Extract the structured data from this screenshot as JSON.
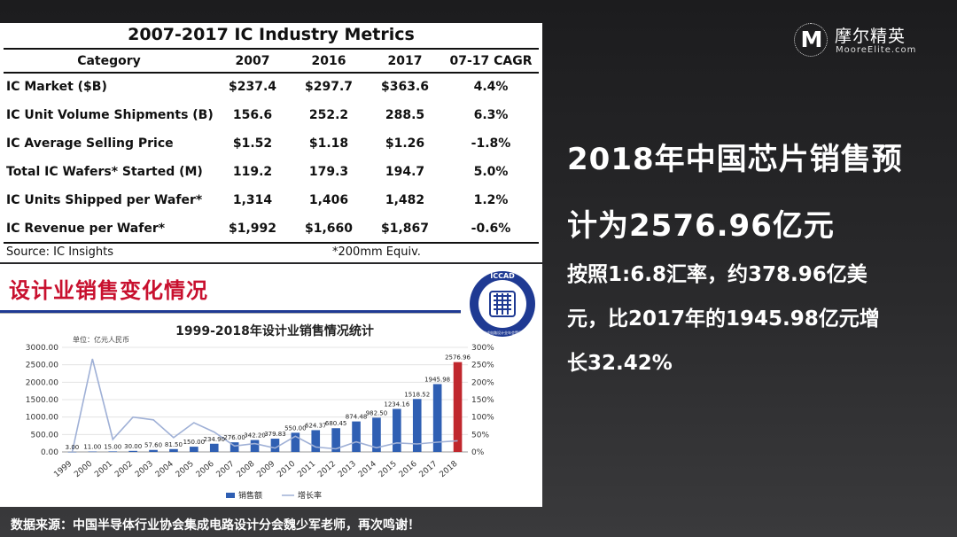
{
  "table": {
    "title": "2007-2017 IC Industry Metrics",
    "headers": [
      "Category",
      "2007",
      "2016",
      "2017",
      "07-17 CAGR"
    ],
    "rows": [
      [
        "IC Market ($B)",
        "$237.4",
        "$297.7",
        "$363.6",
        "4.4%"
      ],
      [
        "IC Unit Volume Shipments (B)",
        "156.6",
        "252.2",
        "288.5",
        "6.3%"
      ],
      [
        "IC Average Selling Price",
        "$1.52",
        "$1.18",
        "$1.26",
        "-1.8%"
      ],
      [
        "Total IC Wafers* Started (M)",
        "119.2",
        "179.3",
        "194.7",
        "5.0%"
      ],
      [
        "IC Units Shipped per Wafer*",
        "1,314",
        "1,406",
        "1,482",
        "1.2%"
      ],
      [
        "IC Revenue per Wafer*",
        "$1,992",
        "$1,660",
        "$1,867",
        "-0.6%"
      ]
    ],
    "source": "Source: IC Insights",
    "note": "*200mm Equiv."
  },
  "section": {
    "title": "设计业销售变化情况",
    "logo_text": "ICCAD",
    "logo_subtext": "中国集成电路设计业年会暨展览会"
  },
  "chart_data": {
    "type": "bar",
    "title": "1999-2018年设计业销售情况统计",
    "unit_label": "单位：亿元人民币",
    "categories": [
      "1999",
      "2000",
      "2001",
      "2002",
      "2003",
      "2004",
      "2005",
      "2006",
      "2007",
      "2008",
      "2009",
      "2010",
      "2011",
      "2012",
      "2013",
      "2014",
      "2015",
      "2016",
      "2017",
      "2018"
    ],
    "series": [
      {
        "name": "销售额",
        "type": "bar",
        "axis": "left",
        "values": [
          3.0,
          11.0,
          15.0,
          30.0,
          57.6,
          81.5,
          150.0,
          234.9,
          276.0,
          342.2,
          379.83,
          550.0,
          624.37,
          680.45,
          874.48,
          982.5,
          1234.16,
          1518.52,
          1945.98,
          2576.96
        ],
        "labels": [
          "3.00",
          "11.00",
          "15.00",
          "30.00",
          "57.60",
          "81.50",
          "150.00",
          "234.90",
          "276.00",
          "342.20",
          "379.83",
          "550.00",
          "624.37",
          "680.45",
          "874.48",
          "982.50",
          "1234.16",
          "1518.52",
          "1945.98",
          "2576.96"
        ]
      },
      {
        "name": "增长率",
        "type": "line",
        "axis": "right",
        "values": [
          0,
          267,
          36,
          100,
          92,
          41,
          84,
          57,
          17,
          24,
          11,
          45,
          14,
          9,
          29,
          12,
          26,
          23,
          28,
          32
        ]
      }
    ],
    "left_axis": {
      "min": 0,
      "max": 3000,
      "ticks": [
        "0.00",
        "500.00",
        "1000.00",
        "1500.00",
        "2000.00",
        "2500.00",
        "3000.00"
      ]
    },
    "right_axis": {
      "min": 0,
      "max": 300,
      "ticks": [
        "0%",
        "50%",
        "100%",
        "150%",
        "200%",
        "250%",
        "300%"
      ]
    },
    "legend": [
      "销售额",
      "增长率"
    ],
    "legend_position": "bottom",
    "colors": {
      "bar": "#2f5fb3",
      "last_bar": "#c0272d",
      "line": "#9fb0d6",
      "grid": "#dddddd"
    }
  },
  "right": {
    "heading_line1": "2018年中国芯片销售预",
    "heading_line2": "计为2576.96亿元",
    "body_line1": "按照1:6.8汇率，约378.96亿美",
    "body_line2": "元，比2017年的1945.98亿元增",
    "body_line3": "长32.42%"
  },
  "brand": {
    "cn": "摩尔精英",
    "en": "MooreElite.com",
    "mark": "M"
  },
  "footer": "数据来源：中国半导体行业协会集成电路设计分会魏少军老师，再次鸣谢！"
}
